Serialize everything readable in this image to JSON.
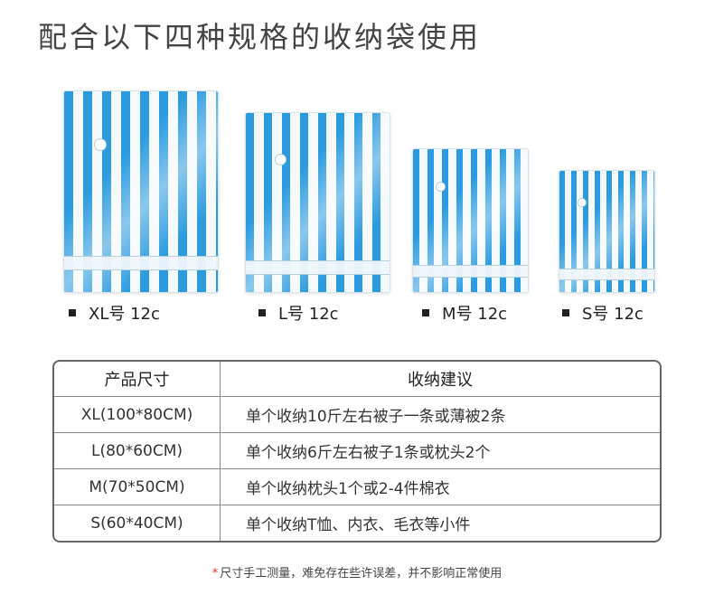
{
  "title": "配合以下四种规格的收纳袋使用",
  "products": [
    {
      "label": "XL号 12c"
    },
    {
      "label": "L号 12c"
    },
    {
      "label": "M号 12c"
    },
    {
      "label": "S号 12c"
    }
  ],
  "table": {
    "headers": [
      "产品尺寸",
      "收纳建议"
    ],
    "rows": [
      [
        "XL(100*80CM)",
        "单个收纳10斤左右被子一条或薄被2条"
      ],
      [
        "L(80*60CM)",
        "单个收纳6斤左右被子1条或枕头2个"
      ],
      [
        "M(70*50CM)",
        "单个收纳枕头1个或2-4件棉衣"
      ],
      [
        "S(60*40CM)",
        "单个收纳T恤、内衣、毛衣等小件"
      ]
    ]
  },
  "note": {
    "star": "*",
    "text": "尺寸手工测量，难免存在些许误差，并不影响正常使用"
  },
  "colors": {
    "stripe": "#2b9be0",
    "note_star": "#d93025"
  }
}
